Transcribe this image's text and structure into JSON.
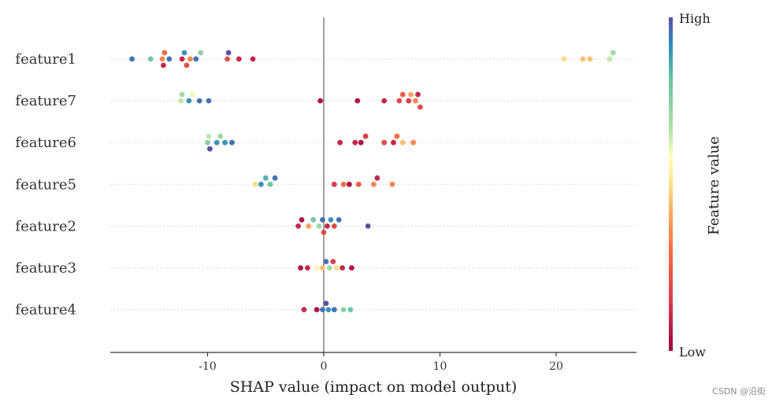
{
  "chart_data": {
    "type": "scatter",
    "title": "",
    "xlabel": "SHAP value (impact on model output)",
    "ylabel": "",
    "xlim": [
      -18.5,
      27
    ],
    "xticks": [
      -10,
      0,
      10,
      20
    ],
    "xtick_labels": [
      "-10",
      "0",
      "10",
      "20"
    ],
    "colorbar": {
      "title": "Feature value",
      "high_label": "High",
      "low_label": "Low",
      "colormap": "Spectral"
    },
    "features": [
      {
        "name": "feature1",
        "points": [
          {
            "x": -16.5,
            "v": 0.95
          },
          {
            "x": -14.9,
            "v": 0.8
          },
          {
            "x": -13.9,
            "v": 0.35
          },
          {
            "x": -13.7,
            "v": 0.3
          },
          {
            "x": -13.8,
            "v": 0.1
          },
          {
            "x": -13.3,
            "v": 0.95
          },
          {
            "x": -12.2,
            "v": 0.1
          },
          {
            "x": -12.0,
            "v": 0.9
          },
          {
            "x": -11.8,
            "v": 0.2
          },
          {
            "x": -11.5,
            "v": 0.35
          },
          {
            "x": -11.0,
            "v": 0.95
          },
          {
            "x": -10.6,
            "v": 0.75
          },
          {
            "x": -8.3,
            "v": 0.2
          },
          {
            "x": -8.2,
            "v": 1.0
          },
          {
            "x": -7.3,
            "v": 0.1
          },
          {
            "x": -6.1,
            "v": 0.1
          },
          {
            "x": 20.7,
            "v": 0.5
          },
          {
            "x": 22.3,
            "v": 0.45
          },
          {
            "x": 22.9,
            "v": 0.45
          },
          {
            "x": 24.6,
            "v": 0.65
          },
          {
            "x": 24.9,
            "v": 0.7
          }
        ]
      },
      {
        "name": "feature7",
        "points": [
          {
            "x": -12.3,
            "v": 0.65
          },
          {
            "x": -12.2,
            "v": 0.7
          },
          {
            "x": -11.6,
            "v": 0.9
          },
          {
            "x": -11.3,
            "v": 0.6
          },
          {
            "x": -10.7,
            "v": 0.95
          },
          {
            "x": -9.9,
            "v": 0.95
          },
          {
            "x": -0.3,
            "v": 0.05
          },
          {
            "x": 2.9,
            "v": 0.05
          },
          {
            "x": 5.2,
            "v": 0.1
          },
          {
            "x": 6.5,
            "v": 0.2
          },
          {
            "x": 6.8,
            "v": 0.25
          },
          {
            "x": 7.3,
            "v": 0.15
          },
          {
            "x": 7.5,
            "v": 0.4
          },
          {
            "x": 7.9,
            "v": 0.35
          },
          {
            "x": 8.1,
            "v": 0.1
          },
          {
            "x": 8.3,
            "v": 0.2
          }
        ]
      },
      {
        "name": "feature6",
        "points": [
          {
            "x": -10.0,
            "v": 0.75
          },
          {
            "x": -9.9,
            "v": 0.65
          },
          {
            "x": -9.8,
            "v": 1.0
          },
          {
            "x": -9.2,
            "v": 0.9
          },
          {
            "x": -8.9,
            "v": 0.7
          },
          {
            "x": -8.5,
            "v": 0.9
          },
          {
            "x": -7.9,
            "v": 0.95
          },
          {
            "x": 1.4,
            "v": 0.1
          },
          {
            "x": 2.7,
            "v": 0.1
          },
          {
            "x": 3.2,
            "v": 0.05
          },
          {
            "x": 3.6,
            "v": 0.15
          },
          {
            "x": 5.2,
            "v": 0.2
          },
          {
            "x": 6.0,
            "v": 0.1
          },
          {
            "x": 6.3,
            "v": 0.3
          },
          {
            "x": 6.8,
            "v": 0.45
          },
          {
            "x": 7.7,
            "v": 0.35
          }
        ]
      },
      {
        "name": "feature5",
        "points": [
          {
            "x": -5.9,
            "v": 0.5
          },
          {
            "x": -5.4,
            "v": 0.9
          },
          {
            "x": -5.0,
            "v": 0.85
          },
          {
            "x": -4.6,
            "v": 0.8
          },
          {
            "x": -4.2,
            "v": 0.95
          },
          {
            "x": 0.9,
            "v": 0.15
          },
          {
            "x": 1.7,
            "v": 0.3
          },
          {
            "x": 2.2,
            "v": 0.05
          },
          {
            "x": 3.0,
            "v": 0.25
          },
          {
            "x": 4.3,
            "v": 0.35
          },
          {
            "x": 4.6,
            "v": 0.1
          },
          {
            "x": 5.9,
            "v": 0.35
          }
        ]
      },
      {
        "name": "feature2",
        "points": [
          {
            "x": -2.2,
            "v": 0.1
          },
          {
            "x": -1.9,
            "v": 0.05
          },
          {
            "x": -1.3,
            "v": 0.4
          },
          {
            "x": -0.9,
            "v": 0.8
          },
          {
            "x": -0.4,
            "v": 0.7
          },
          {
            "x": -0.1,
            "v": 0.95
          },
          {
            "x": 0.0,
            "v": 0.2
          },
          {
            "x": 0.3,
            "v": 0.1
          },
          {
            "x": 0.6,
            "v": 0.9
          },
          {
            "x": 0.9,
            "v": 0.2
          },
          {
            "x": 1.3,
            "v": 0.95
          },
          {
            "x": 3.8,
            "v": 1.0
          }
        ]
      },
      {
        "name": "feature3",
        "points": [
          {
            "x": -2.0,
            "v": 0.05
          },
          {
            "x": -1.4,
            "v": 0.1
          },
          {
            "x": -0.6,
            "v": 0.55
          },
          {
            "x": -0.1,
            "v": 0.45
          },
          {
            "x": 0.2,
            "v": 0.95
          },
          {
            "x": 0.5,
            "v": 0.7
          },
          {
            "x": 0.8,
            "v": 0.15
          },
          {
            "x": 1.1,
            "v": 0.5
          },
          {
            "x": 1.6,
            "v": 0.1
          },
          {
            "x": 2.4,
            "v": 0.05
          }
        ]
      },
      {
        "name": "feature4",
        "points": [
          {
            "x": -1.7,
            "v": 0.1
          },
          {
            "x": -0.6,
            "v": 0.05
          },
          {
            "x": -0.1,
            "v": 0.95
          },
          {
            "x": 0.2,
            "v": 1.0
          },
          {
            "x": 0.4,
            "v": 0.9
          },
          {
            "x": 0.9,
            "v": 0.95
          },
          {
            "x": 1.7,
            "v": 0.75
          },
          {
            "x": 2.3,
            "v": 0.8
          }
        ]
      }
    ]
  },
  "watermark": "CSDN @沿街"
}
